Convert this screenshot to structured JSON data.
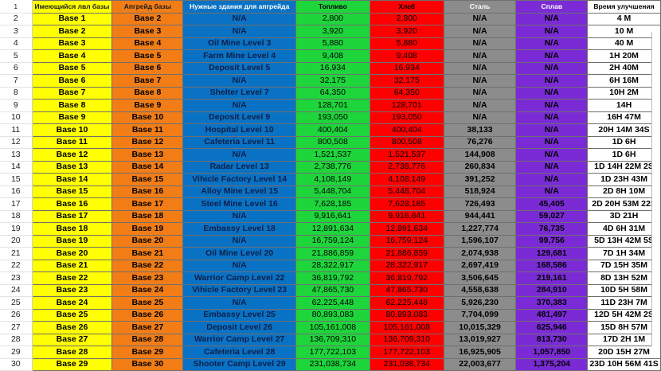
{
  "headers": [
    "Имеющийся лвл базы",
    "Апгрейд базы",
    "Нужные здания для апгрейда",
    "Топливо",
    "Хлеб",
    "Сталь",
    "Сплав",
    "Время улучшения"
  ],
  "rows": [
    {
      "n": "2",
      "cur": "Base 1",
      "up": "Base 2",
      "req": "N/A",
      "fuel": "2,800",
      "bread": "2,800",
      "steel": "N/A",
      "alloy": "N/A",
      "time": "4 M"
    },
    {
      "n": "3",
      "cur": "Base 2",
      "up": "Base 3",
      "req": "N/A",
      "fuel": "3,920",
      "bread": "3,920",
      "steel": "N/A",
      "alloy": "N/A",
      "time": "10 M"
    },
    {
      "n": "4",
      "cur": "Base 3",
      "up": "Base 4",
      "req": "Oil Mine Level 3",
      "fuel": "5,880",
      "bread": "5,880",
      "steel": "N/A",
      "alloy": "N/A",
      "time": "40 M"
    },
    {
      "n": "5",
      "cur": "Base 4",
      "up": "Base 5",
      "req": "Farm Mine Level 4",
      "fuel": "9,408",
      "bread": "9,408",
      "steel": "N/A",
      "alloy": "N/A",
      "time": "1H 20M"
    },
    {
      "n": "6",
      "cur": "Base 5",
      "up": "Base 6",
      "req": "Deposit Level 5",
      "fuel": "16,934",
      "bread": "16,934",
      "steel": "N/A",
      "alloy": "N/A",
      "time": "2H 40M"
    },
    {
      "n": "7",
      "cur": "Base 6",
      "up": "Base 7",
      "req": "N/A",
      "fuel": "32,175",
      "bread": "32,175",
      "steel": "N/A",
      "alloy": "N/A",
      "time": "6H 16M"
    },
    {
      "n": "8",
      "cur": "Base 7",
      "up": "Base 8",
      "req": "Shelter Level 7",
      "fuel": "64,350",
      "bread": "64,350",
      "steel": "N/A",
      "alloy": "N/A",
      "time": "10H 2M"
    },
    {
      "n": "9",
      "cur": "Base 8",
      "up": "Base 9",
      "req": "N/A",
      "fuel": "128,701",
      "bread": "128,701",
      "steel": "N/A",
      "alloy": "N/A",
      "time": "14H"
    },
    {
      "n": "10",
      "cur": "Base 9",
      "up": "Base 10",
      "req": "Deposit Level 9",
      "fuel": "193,050",
      "bread": "193,050",
      "steel": "N/A",
      "alloy": "N/A",
      "time": "16H 47M"
    },
    {
      "n": "11",
      "cur": "Base 10",
      "up": "Base 11",
      "req": "Hospital Level 10",
      "fuel": "400,404",
      "bread": "400,404",
      "steel": "38,133",
      "alloy": "N/A",
      "time": "20H 14M 34S"
    },
    {
      "n": "12",
      "cur": "Base 11",
      "up": "Base 12",
      "req": "Cafeteria Level 11",
      "fuel": "800,508",
      "bread": "800,508",
      "steel": "76,276",
      "alloy": "N/A",
      "time": "1D 6H"
    },
    {
      "n": "13",
      "cur": "Base 12",
      "up": "Base 13",
      "req": "N/A",
      "fuel": "1,521,537",
      "bread": "1,521,537",
      "steel": "144,908",
      "alloy": "N/A",
      "time": "1D 6H"
    },
    {
      "n": "14",
      "cur": "Base 13",
      "up": "Base 14",
      "req": "Radar Level 13",
      "fuel": "2,738,776",
      "bread": "2,738,776",
      "steel": "260,834",
      "alloy": "N/A",
      "time": "1D 14H 22M 2S"
    },
    {
      "n": "15",
      "cur": "Base 14",
      "up": "Base 15",
      "req": "Vihicle Factory Level 14",
      "fuel": "4,108,149",
      "bread": "4,108,149",
      "steel": "391,252",
      "alloy": "N/A",
      "time": "1D 23H 43M"
    },
    {
      "n": "16",
      "cur": "Base 15",
      "up": "Base 16",
      "req": "Alloy Mine Level 15",
      "fuel": "5,448,704",
      "bread": "5,448,704",
      "steel": "518,924",
      "alloy": "N/A",
      "time": "2D 8H 10M"
    },
    {
      "n": "17",
      "cur": "Base 16",
      "up": "Base 17",
      "req": "Steel Mine Level 16",
      "fuel": "7,628,185",
      "bread": "7,628,185",
      "steel": "726,493",
      "alloy": "45,405",
      "time": "2D 20H 53M 22S"
    },
    {
      "n": "18",
      "cur": "Base 17",
      "up": "Base 18",
      "req": "N/A",
      "fuel": "9,916,641",
      "bread": "9,916,641",
      "steel": "944,441",
      "alloy": "59,027",
      "time": "3D 21H"
    },
    {
      "n": "19",
      "cur": "Base 18",
      "up": "Base 19",
      "req": "Embassy Level 18",
      "fuel": "12,891,634",
      "bread": "12,891,634",
      "steel": "1,227,774",
      "alloy": "76,735",
      "time": "4D 6H 31M"
    },
    {
      "n": "20",
      "cur": "Base 19",
      "up": "Base 20",
      "req": "N/A",
      "fuel": "16,759,124",
      "bread": "16,759,124",
      "steel": "1,596,107",
      "alloy": "99,756",
      "time": "5D 13H 42M 5S"
    },
    {
      "n": "21",
      "cur": "Base 20",
      "up": "Base 21",
      "req": "Oil Mine Level 20",
      "fuel": "21,886,859",
      "bread": "21,886,859",
      "steel": "2,074,938",
      "alloy": "129,681",
      "time": "7D 1H 34M"
    },
    {
      "n": "22",
      "cur": "Base 21",
      "up": "Base 22",
      "req": "N/A",
      "fuel": "28,322,917",
      "bread": "28,322,917",
      "steel": "2,697,419",
      "alloy": "168,586",
      "time": "7D 15H 35M"
    },
    {
      "n": "23",
      "cur": "Base 22",
      "up": "Base 23",
      "req": "Warrior Camp Level 22",
      "fuel": "36,819,792",
      "bread": "36,819,792",
      "steel": "3,506,645",
      "alloy": "219,161",
      "time": "8D 13H 52M"
    },
    {
      "n": "24",
      "cur": "Base 23",
      "up": "Base 24",
      "req": "Vihicle Factory Level 23",
      "fuel": "47,865,730",
      "bread": "47,865,730",
      "steel": "4,558,638",
      "alloy": "284,910",
      "time": "10D 5H 58M"
    },
    {
      "n": "25",
      "cur": "Base 24",
      "up": "Base 25",
      "req": "N/A",
      "fuel": "62,225,448",
      "bread": "62,225,448",
      "steel": "5,926,230",
      "alloy": "370,383",
      "time": "11D 23H 7M"
    },
    {
      "n": "26",
      "cur": "Base 25",
      "up": "Base 26",
      "req": "Embassy Level 25",
      "fuel": "80,893,083",
      "bread": "80,893,083",
      "steel": "7,704,099",
      "alloy": "481,497",
      "time": "12D 5H 42M 2S"
    },
    {
      "n": "27",
      "cur": "Base 26",
      "up": "Base 27",
      "req": "Deposit Level 26",
      "fuel": "105,161,008",
      "bread": "105,161,008",
      "steel": "10,015,329",
      "alloy": "625,946",
      "time": "15D 8H 57M"
    },
    {
      "n": "28",
      "cur": "Base 27",
      "up": "Base 28",
      "req": "Warrior Camp Level 27",
      "fuel": "136,709,310",
      "bread": "136,709,310",
      "steel": "13,019,927",
      "alloy": "813,730",
      "time": "17D 2H 1M"
    },
    {
      "n": "29",
      "cur": "Base 28",
      "up": "Base 29",
      "req": "Cafeteria Level 28",
      "fuel": "177,722,103",
      "bread": "177,722,103",
      "steel": "16,925,905",
      "alloy": "1,057,850",
      "time": "20D 15H 27M"
    },
    {
      "n": "30",
      "cur": "Base 29",
      "up": "Base 30",
      "req": "Shooter Camp Level 29",
      "fuel": "231,038,734",
      "bread": "231,038,734",
      "steel": "22,003,677",
      "alloy": "1,375,204",
      "time": "23D 10H 56M 41S"
    }
  ],
  "colors": {
    "yellow": "#ffff00",
    "orange": "#f27d17",
    "blue": "#0a72c4",
    "green": "#1fd53c",
    "red": "#ff0000",
    "gray": "#8c8c8c",
    "purple": "#7a2bd6"
  }
}
